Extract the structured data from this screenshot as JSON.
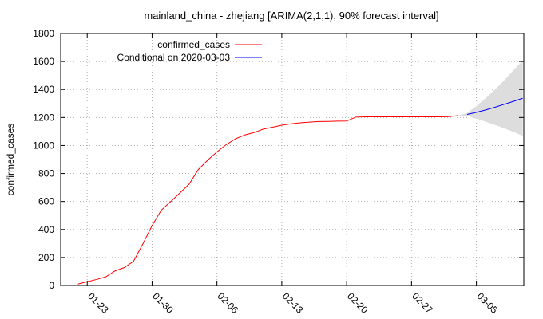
{
  "chart_data": {
    "type": "line",
    "title": "mainland_china - zhejiang [ARIMA(2,1,1), 90% forecast interval]",
    "xlabel": "",
    "ylabel": "confirmed_cases",
    "ylim": [
      0,
      1800
    ],
    "yticks": [
      0,
      200,
      400,
      600,
      800,
      1000,
      1200,
      1400,
      1600,
      1800
    ],
    "xlim": [
      "2020-01-21",
      "2020-03-09"
    ],
    "xticks": [
      "01-23",
      "01-30",
      "02-06",
      "02-13",
      "02-20",
      "02-27",
      "03-05"
    ],
    "xtick_dates": [
      "2020-01-23",
      "2020-01-30",
      "2020-02-06",
      "2020-02-13",
      "2020-02-20",
      "2020-02-27",
      "2020-03-05"
    ],
    "grid": true,
    "legend_position": "top-left",
    "series": [
      {
        "name": "confirmed_cases",
        "color": "#ff0000",
        "points": [
          [
            "2020-01-22",
            10
          ],
          [
            "2020-01-23",
            27
          ],
          [
            "2020-01-24",
            43
          ],
          [
            "2020-01-25",
            62
          ],
          [
            "2020-01-26",
            104
          ],
          [
            "2020-01-27",
            128
          ],
          [
            "2020-01-28",
            173
          ],
          [
            "2020-01-29",
            296
          ],
          [
            "2020-01-30",
            428
          ],
          [
            "2020-01-31",
            538
          ],
          [
            "2020-02-01",
            599
          ],
          [
            "2020-02-02",
            661
          ],
          [
            "2020-02-03",
            724
          ],
          [
            "2020-02-04",
            829
          ],
          [
            "2020-02-05",
            895
          ],
          [
            "2020-02-06",
            954
          ],
          [
            "2020-02-07",
            1006
          ],
          [
            "2020-02-08",
            1048
          ],
          [
            "2020-02-09",
            1075
          ],
          [
            "2020-02-10",
            1092
          ],
          [
            "2020-02-11",
            1117
          ],
          [
            "2020-02-12",
            1131
          ],
          [
            "2020-02-13",
            1145
          ],
          [
            "2020-02-14",
            1155
          ],
          [
            "2020-02-15",
            1162
          ],
          [
            "2020-02-16",
            1167
          ],
          [
            "2020-02-17",
            1171
          ],
          [
            "2020-02-18",
            1172
          ],
          [
            "2020-02-19",
            1174
          ],
          [
            "2020-02-20",
            1175
          ],
          [
            "2020-02-21",
            1203
          ],
          [
            "2020-02-22",
            1205
          ],
          [
            "2020-02-23",
            1205
          ],
          [
            "2020-02-24",
            1205
          ],
          [
            "2020-02-25",
            1205
          ],
          [
            "2020-02-26",
            1205
          ],
          [
            "2020-02-27",
            1205
          ],
          [
            "2020-02-28",
            1205
          ],
          [
            "2020-02-29",
            1205
          ],
          [
            "2020-03-01",
            1205
          ],
          [
            "2020-03-02",
            1206
          ],
          [
            "2020-03-03",
            1213
          ]
        ]
      },
      {
        "name": "Conditional on 2020-03-03",
        "color": "#0000ff",
        "points": [
          [
            "2020-03-04",
            1222
          ],
          [
            "2020-03-05",
            1237
          ],
          [
            "2020-03-06",
            1254
          ],
          [
            "2020-03-07",
            1273
          ],
          [
            "2020-03-08",
            1294
          ],
          [
            "2020-03-09",
            1315
          ],
          [
            "2020-03-10",
            1337
          ]
        ],
        "interval": {
          "level": "90%",
          "color": "#dddddd",
          "lower": [
            1212,
            1192,
            1170,
            1147,
            1123,
            1097,
            1069
          ],
          "upper": [
            1232,
            1282,
            1338,
            1399,
            1465,
            1537,
            1605
          ]
        }
      }
    ]
  }
}
